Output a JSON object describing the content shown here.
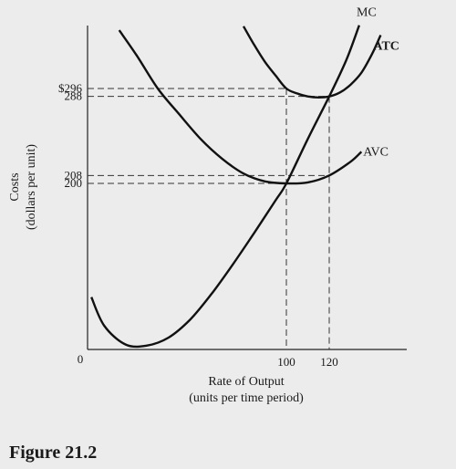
{
  "figure_label": "Figure 21.2",
  "chart_data": {
    "type": "line",
    "xlabel": "Rate of Output",
    "xlabel_sub": "(units per time period)",
    "ylabel": "Costs",
    "ylabel_sub": "(dollars per unit)",
    "origin_label": "0",
    "x_ticks": [
      {
        "value": 100,
        "label": "100"
      },
      {
        "value": 120,
        "label": "120"
      }
    ],
    "y_ticks": [
      {
        "value": 296,
        "label": "$296"
      },
      {
        "value": 288,
        "label": "288"
      },
      {
        "value": 208,
        "label": "208"
      },
      {
        "value": 200,
        "label": "200"
      }
    ],
    "guides": [
      {
        "x": 100,
        "y": 296
      },
      {
        "x": 120,
        "y": 288
      },
      {
        "x": 120,
        "y": 208
      },
      {
        "x": 100,
        "y": 200
      }
    ],
    "series": [
      {
        "name": "MC",
        "bold": false,
        "points": [
          [
            9,
            85
          ],
          [
            15,
            56
          ],
          [
            25,
            37
          ],
          [
            35,
            36
          ],
          [
            45,
            44
          ],
          [
            55,
            62
          ],
          [
            65,
            88
          ],
          [
            75,
            118
          ],
          [
            85,
            150
          ],
          [
            95,
            183
          ],
          [
            100,
            200
          ],
          [
            110,
            245
          ],
          [
            120,
            288
          ],
          [
            128,
            325
          ],
          [
            134,
            360
          ]
        ]
      },
      {
        "name": "ATC",
        "bold": true,
        "points": [
          [
            80,
            359
          ],
          [
            85,
            340
          ],
          [
            90,
            323
          ],
          [
            95,
            309
          ],
          [
            100,
            296
          ],
          [
            105,
            291
          ],
          [
            110,
            288
          ],
          [
            115,
            287
          ],
          [
            120,
            288
          ],
          [
            125,
            292
          ],
          [
            130,
            300
          ],
          [
            135,
            312
          ],
          [
            140,
            331
          ],
          [
            144,
            350
          ]
        ]
      },
      {
        "name": "AVC",
        "bold": false,
        "points": [
          [
            22,
            355
          ],
          [
            30,
            330
          ],
          [
            40,
            296
          ],
          [
            50,
            270
          ],
          [
            60,
            245
          ],
          [
            70,
            225
          ],
          [
            80,
            210
          ],
          [
            90,
            202
          ],
          [
            100,
            200
          ],
          [
            110,
            201
          ],
          [
            120,
            208
          ],
          [
            130,
            222
          ],
          [
            135,
            232
          ]
        ]
      }
    ]
  }
}
